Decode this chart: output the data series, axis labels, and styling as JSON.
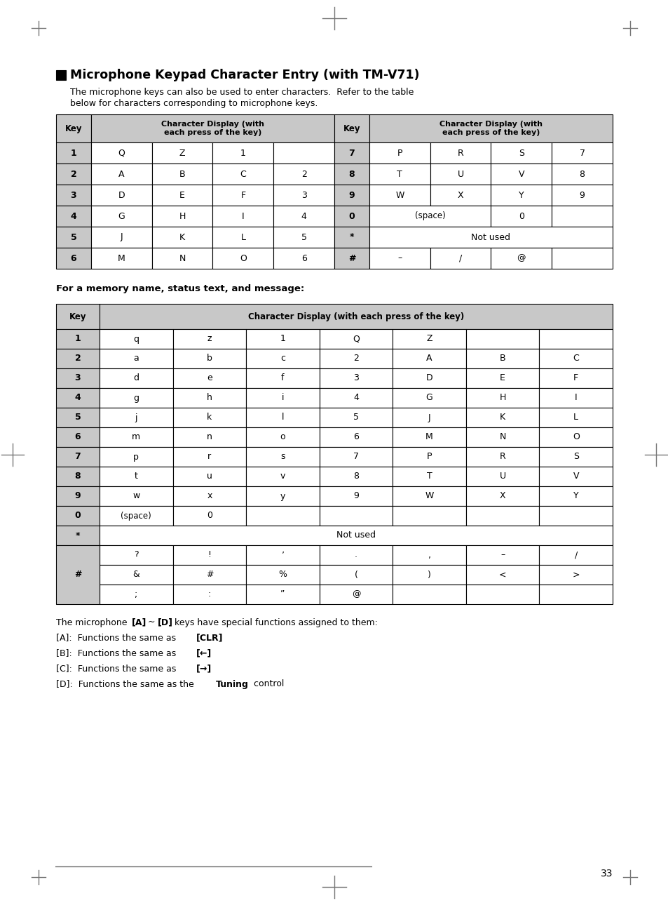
{
  "title": "Microphone Keypad Character Entry (with TM-V71)",
  "intro_line1": "The microphone keys can also be used to enter characters.  Refer to the table",
  "intro_line2": "below for characters corresponding to microphone keys.",
  "table1_rows_left": [
    [
      "1",
      "Q",
      "Z",
      "1",
      ""
    ],
    [
      "2",
      "A",
      "B",
      "C",
      "2"
    ],
    [
      "3",
      "D",
      "E",
      "F",
      "3"
    ],
    [
      "4",
      "G",
      "H",
      "I",
      "4"
    ],
    [
      "5",
      "J",
      "K",
      "L",
      "5"
    ],
    [
      "6",
      "M",
      "N",
      "O",
      "6"
    ]
  ],
  "table1_rows_right": [
    [
      "7",
      "P",
      "R",
      "S",
      "7"
    ],
    [
      "8",
      "T",
      "U",
      "V",
      "8"
    ],
    [
      "9",
      "W",
      "X",
      "Y",
      "9"
    ],
    [
      "0",
      "(space)",
      "0",
      "",
      ""
    ],
    [
      "*",
      "Not used",
      "",
      "",
      ""
    ],
    [
      "#",
      "–",
      "/",
      "@",
      ""
    ]
  ],
  "table2_label": "For a memory name, status text, and message:",
  "table2_rows": [
    [
      "1",
      "q",
      "z",
      "1",
      "Q",
      "Z",
      "",
      ""
    ],
    [
      "2",
      "a",
      "b",
      "c",
      "2",
      "A",
      "B",
      "C"
    ],
    [
      "3",
      "d",
      "e",
      "f",
      "3",
      "D",
      "E",
      "F"
    ],
    [
      "4",
      "g",
      "h",
      "i",
      "4",
      "G",
      "H",
      "I"
    ],
    [
      "5",
      "j",
      "k",
      "l",
      "5",
      "J",
      "K",
      "L"
    ],
    [
      "6",
      "m",
      "n",
      "o",
      "6",
      "M",
      "N",
      "O"
    ],
    [
      "7",
      "p",
      "r",
      "s",
      "7",
      "P",
      "R",
      "S"
    ],
    [
      "8",
      "t",
      "u",
      "v",
      "8",
      "T",
      "U",
      "V"
    ],
    [
      "9",
      "w",
      "x",
      "y",
      "9",
      "W",
      "X",
      "Y"
    ],
    [
      "0",
      "(space)",
      "0",
      "",
      "",
      "",
      "",
      ""
    ],
    [
      "*",
      "Not used",
      "",
      "",
      "",
      "",
      "",
      ""
    ],
    [
      "#_1",
      "?",
      "!",
      "’",
      ".",
      ",",
      "–",
      "/"
    ],
    [
      "#_2",
      "&",
      "#",
      "%",
      "(",
      ")",
      "<",
      ">"
    ],
    [
      "#_3",
      ";",
      ":",
      "”",
      "@",
      "",
      "",
      ""
    ]
  ],
  "page_number": "33",
  "bg_color": "#ffffff",
  "header_bg": "#c8c8c8",
  "cell_bg": "#ffffff",
  "key_bg": "#c8c8c8",
  "border_color": "#000000",
  "text_color": "#000000"
}
